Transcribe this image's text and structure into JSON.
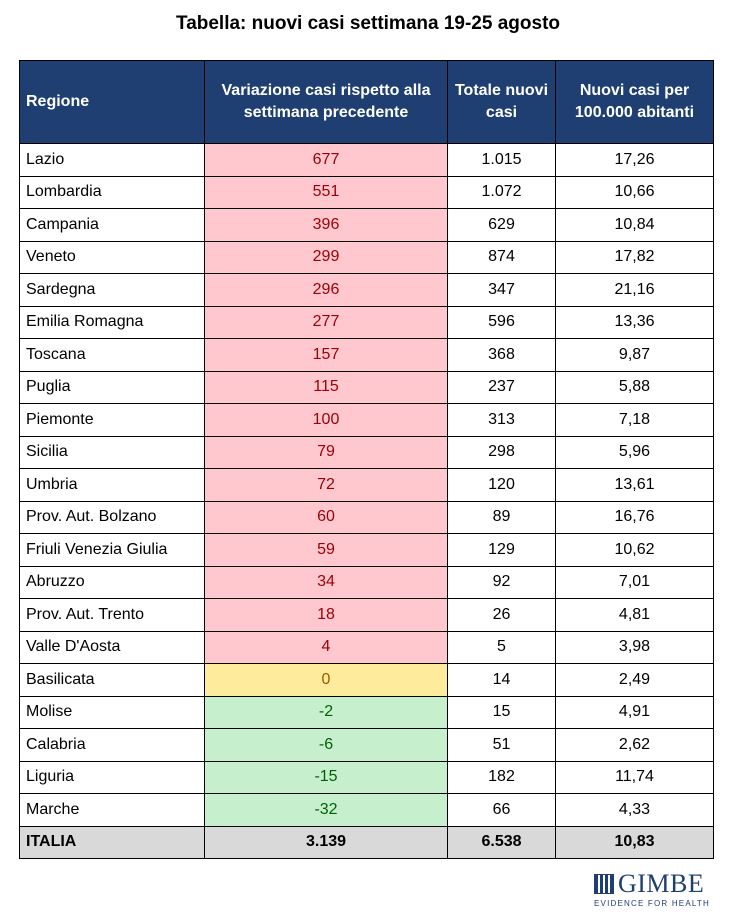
{
  "title": "Tabella: nuovi casi settimana 19-25 agosto",
  "headers": {
    "region": "Regione",
    "variation": "Variazione casi rispetto alla settimana precedente",
    "total": "Totale nuovi casi",
    "per100k": "Nuovi casi per 100.000 abitanti"
  },
  "rows": [
    {
      "region": "Lazio",
      "variation": "677",
      "total": "1.015",
      "per100k": "17,26",
      "tone": "pos"
    },
    {
      "region": "Lombardia",
      "variation": "551",
      "total": "1.072",
      "per100k": "10,66",
      "tone": "pos"
    },
    {
      "region": "Campania",
      "variation": "396",
      "total": "629",
      "per100k": "10,84",
      "tone": "pos"
    },
    {
      "region": "Veneto",
      "variation": "299",
      "total": "874",
      "per100k": "17,82",
      "tone": "pos"
    },
    {
      "region": "Sardegna",
      "variation": "296",
      "total": "347",
      "per100k": "21,16",
      "tone": "pos"
    },
    {
      "region": "Emilia Romagna",
      "variation": "277",
      "total": "596",
      "per100k": "13,36",
      "tone": "pos"
    },
    {
      "region": "Toscana",
      "variation": "157",
      "total": "368",
      "per100k": "9,87",
      "tone": "pos"
    },
    {
      "region": "Puglia",
      "variation": "115",
      "total": "237",
      "per100k": "5,88",
      "tone": "pos"
    },
    {
      "region": "Piemonte",
      "variation": "100",
      "total": "313",
      "per100k": "7,18",
      "tone": "pos"
    },
    {
      "region": "Sicilia",
      "variation": "79",
      "total": "298",
      "per100k": "5,96",
      "tone": "pos"
    },
    {
      "region": "Umbria",
      "variation": "72",
      "total": "120",
      "per100k": "13,61",
      "tone": "pos"
    },
    {
      "region": "Prov. Aut. Bolzano",
      "variation": "60",
      "total": "89",
      "per100k": "16,76",
      "tone": "pos"
    },
    {
      "region": "Friuli Venezia Giulia",
      "variation": "59",
      "total": "129",
      "per100k": "10,62",
      "tone": "pos"
    },
    {
      "region": "Abruzzo",
      "variation": "34",
      "total": "92",
      "per100k": "7,01",
      "tone": "pos"
    },
    {
      "region": "Prov. Aut. Trento",
      "variation": "18",
      "total": "26",
      "per100k": "4,81",
      "tone": "pos"
    },
    {
      "region": "Valle D'Aosta",
      "variation": "4",
      "total": "5",
      "per100k": "3,98",
      "tone": "pos"
    },
    {
      "region": "Basilicata",
      "variation": "0",
      "total": "14",
      "per100k": "2,49",
      "tone": "zero"
    },
    {
      "region": "Molise",
      "variation": "-2",
      "total": "15",
      "per100k": "4,91",
      "tone": "neg"
    },
    {
      "region": "Calabria",
      "variation": "-6",
      "total": "51",
      "per100k": "2,62",
      "tone": "neg"
    },
    {
      "region": "Liguria",
      "variation": "-15",
      "total": "182",
      "per100k": "11,74",
      "tone": "neg"
    },
    {
      "region": "Marche",
      "variation": "-32",
      "total": "66",
      "per100k": "4,33",
      "tone": "neg"
    }
  ],
  "total_row": {
    "region": "ITALIA",
    "variation": "3.139",
    "total": "6.538",
    "per100k": "10,83"
  },
  "logo": {
    "name": "GIMBE",
    "tagline": "EVIDENCE FOR HEALTH"
  },
  "colors": {
    "header_bg": "#1f3f73",
    "increase_bg": "#ffc7ce",
    "zero_bg": "#ffeb9c",
    "decrease_bg": "#c6efce",
    "total_bg": "#d9d9d9"
  }
}
